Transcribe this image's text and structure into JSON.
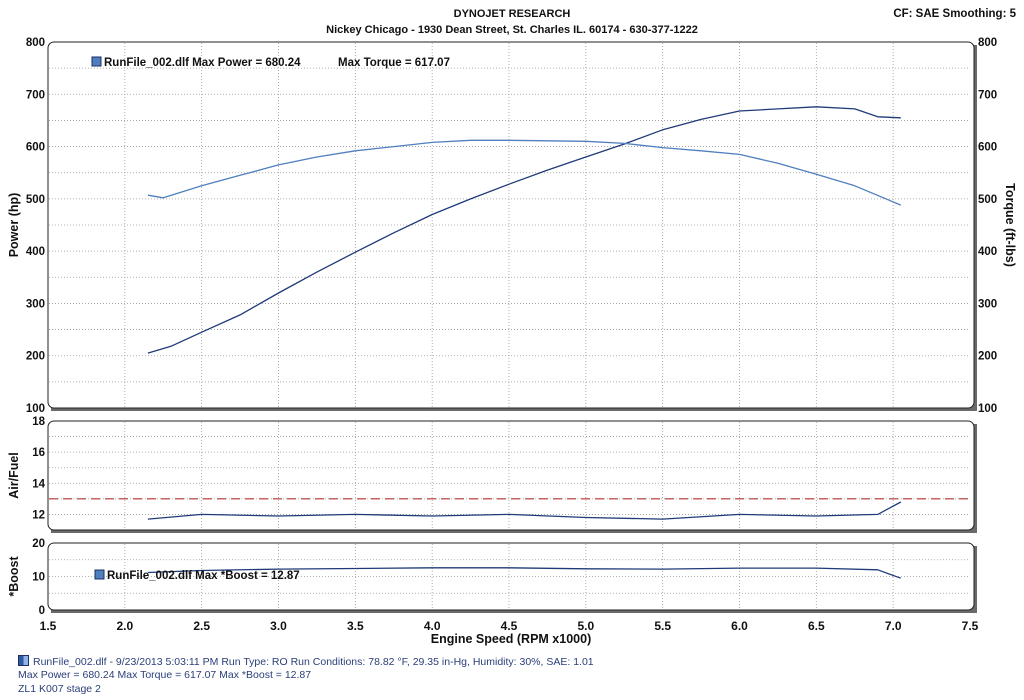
{
  "header": {
    "title": "DYNOJET RESEARCH",
    "subtitle": "Nickey Chicago - 1930 Dean Street, St. Charles IL. 60174 - 630-377-1222",
    "cf": "CF: SAE  Smoothing: 5"
  },
  "footer": {
    "line1": "RunFile_002.dlf - 9/23/2013 5:03:11 PM  Run Type: RO  Run Conditions: 78.82 °F, 29.35 in-Hg,  Humidity:  30%, SAE: 1.01",
    "line2": "Max Power = 680.24  Max Torque = 617.07  Max *Boost = 12.87",
    "line3": "ZL1 K007 stage 2"
  },
  "colors": {
    "power": "#1f3a78",
    "torque": "#4f7fbe",
    "afr": "#1f3a78",
    "boost": "#1f3a78",
    "afr_target": "#b03030",
    "grid": "#9a9a9a"
  },
  "chart_data": [
    {
      "type": "line",
      "name": "power-torque",
      "legend": [
        "RunFile_002.dlf Max Power = 680.24",
        "Max Torque = 617.07"
      ],
      "xlabel": "Engine Speed (RPM x1000)",
      "ylabel": "Power (hp)",
      "y2label": "Torque (ft-lbs)",
      "xlim": [
        1.5,
        7.5
      ],
      "ylim": [
        100,
        800
      ],
      "y2lim": [
        100,
        800
      ],
      "xticks": [
        "1.5",
        "2.0",
        "2.5",
        "3.0",
        "3.5",
        "4.0",
        "4.5",
        "5.0",
        "5.5",
        "6.0",
        "6.5",
        "7.0",
        "7.5"
      ],
      "yticks": [
        "100",
        "200",
        "300",
        "400",
        "500",
        "600",
        "700",
        "800"
      ],
      "series": [
        {
          "key": "power",
          "x": [
            2.15,
            2.3,
            2.5,
            2.75,
            3.0,
            3.25,
            3.5,
            3.75,
            4.0,
            4.25,
            4.5,
            4.75,
            5.0,
            5.25,
            5.5,
            5.75,
            6.0,
            6.25,
            6.5,
            6.75,
            6.9,
            7.05
          ],
          "values": [
            205,
            218,
            245,
            278,
            320,
            360,
            398,
            435,
            470,
            500,
            528,
            555,
            580,
            605,
            632,
            652,
            668,
            672,
            676,
            672,
            657,
            655
          ]
        },
        {
          "key": "torque",
          "x": [
            2.15,
            2.25,
            2.5,
            2.75,
            3.0,
            3.25,
            3.5,
            3.75,
            4.0,
            4.25,
            4.5,
            4.75,
            5.0,
            5.25,
            5.5,
            5.75,
            6.0,
            6.25,
            6.5,
            6.75,
            7.05
          ],
          "values": [
            507,
            502,
            525,
            545,
            565,
            580,
            592,
            600,
            608,
            612,
            612,
            611,
            610,
            606,
            598,
            592,
            585,
            568,
            547,
            525,
            488
          ]
        }
      ]
    },
    {
      "type": "line",
      "name": "air-fuel",
      "ylabel": "Air/Fuel",
      "xlim": [
        1.5,
        7.5
      ],
      "ylim": [
        11,
        18
      ],
      "yticks": [
        "12",
        "14",
        "16",
        "18"
      ],
      "target": 13.0,
      "series": [
        {
          "key": "afr",
          "x": [
            2.15,
            2.5,
            3.0,
            3.5,
            4.0,
            4.5,
            5.0,
            5.5,
            6.0,
            6.5,
            6.9,
            7.05
          ],
          "values": [
            11.7,
            12.0,
            11.9,
            12.0,
            11.9,
            12.0,
            11.8,
            11.7,
            12.0,
            11.9,
            12.0,
            12.8
          ]
        }
      ]
    },
    {
      "type": "line",
      "name": "boost",
      "legend": [
        "RunFile_002.dlf Max *Boost = 12.87"
      ],
      "ylabel": "*Boost",
      "xlim": [
        1.5,
        7.5
      ],
      "ylim": [
        0,
        20
      ],
      "yticks": [
        "0",
        "10",
        "20"
      ],
      "series": [
        {
          "key": "boost",
          "x": [
            2.15,
            2.5,
            3.0,
            3.5,
            4.0,
            4.5,
            5.0,
            5.5,
            6.0,
            6.5,
            6.9,
            7.05
          ],
          "values": [
            11.2,
            11.8,
            12.2,
            12.4,
            12.6,
            12.6,
            12.3,
            12.2,
            12.5,
            12.5,
            12.0,
            9.5
          ]
        }
      ]
    }
  ]
}
